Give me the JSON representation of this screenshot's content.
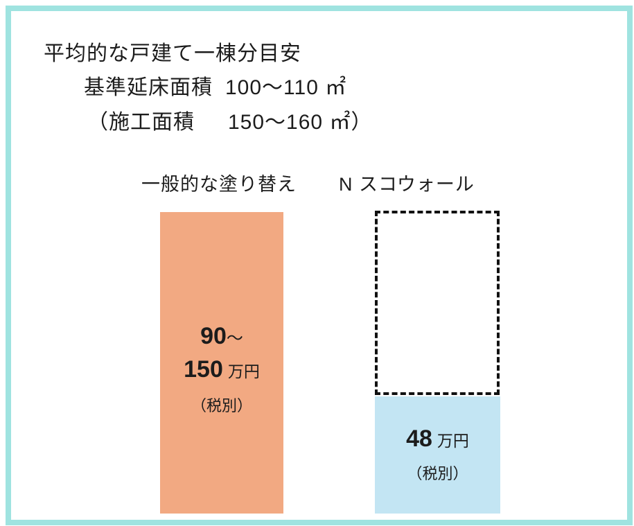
{
  "header": {
    "title": "平均的な戸建て一棟分目安",
    "floor_area_label": "基準延床面積",
    "floor_area_value": "100〜110 ㎡",
    "construction_label": "（施工面積",
    "construction_value": "150〜160 ㎡）"
  },
  "bars": {
    "general": {
      "label": "一般的な塗り替え",
      "range_start": "90",
      "tilde": "〜",
      "range_end": "150",
      "unit": "万円",
      "tax_note": "（税別）"
    },
    "nsuko": {
      "label": "N スコウォール",
      "value": "48",
      "unit": "万円",
      "tax_note": "（税別）"
    }
  },
  "colors": {
    "frame_border": "#9fe3e0",
    "general_bar": "#f2a982",
    "nsuko_bar": "#c3e5f3",
    "dashed_outline": "#111111",
    "text": "#1c1c1c"
  },
  "chart_data": {
    "type": "bar",
    "title": "平均的な戸建て一棟分目安",
    "subtitle_lines": [
      "基準延床面積 100〜110 ㎡",
      "（施工面積 150〜160 ㎡）"
    ],
    "categories": [
      "一般的な塗り替え",
      "N スコウォール"
    ],
    "values": [
      {
        "min": 90,
        "max": 150,
        "display": "90〜150 万円（税別）"
      },
      {
        "min": 48,
        "max": 48,
        "display": "48 万円（税別）"
      }
    ],
    "unit": "万円",
    "tax_note": "税別",
    "comparison_outline": {
      "on_category": "N スコウォール",
      "style": "dashed",
      "meaning": "一般的な塗り替えの価格高さを示す点線枠（塗りつぶし部分は48万円）"
    },
    "axes": "none",
    "grid": false,
    "legend_position": "none",
    "bar_colors": [
      "#f2a982",
      "#c3e5f3"
    ]
  }
}
